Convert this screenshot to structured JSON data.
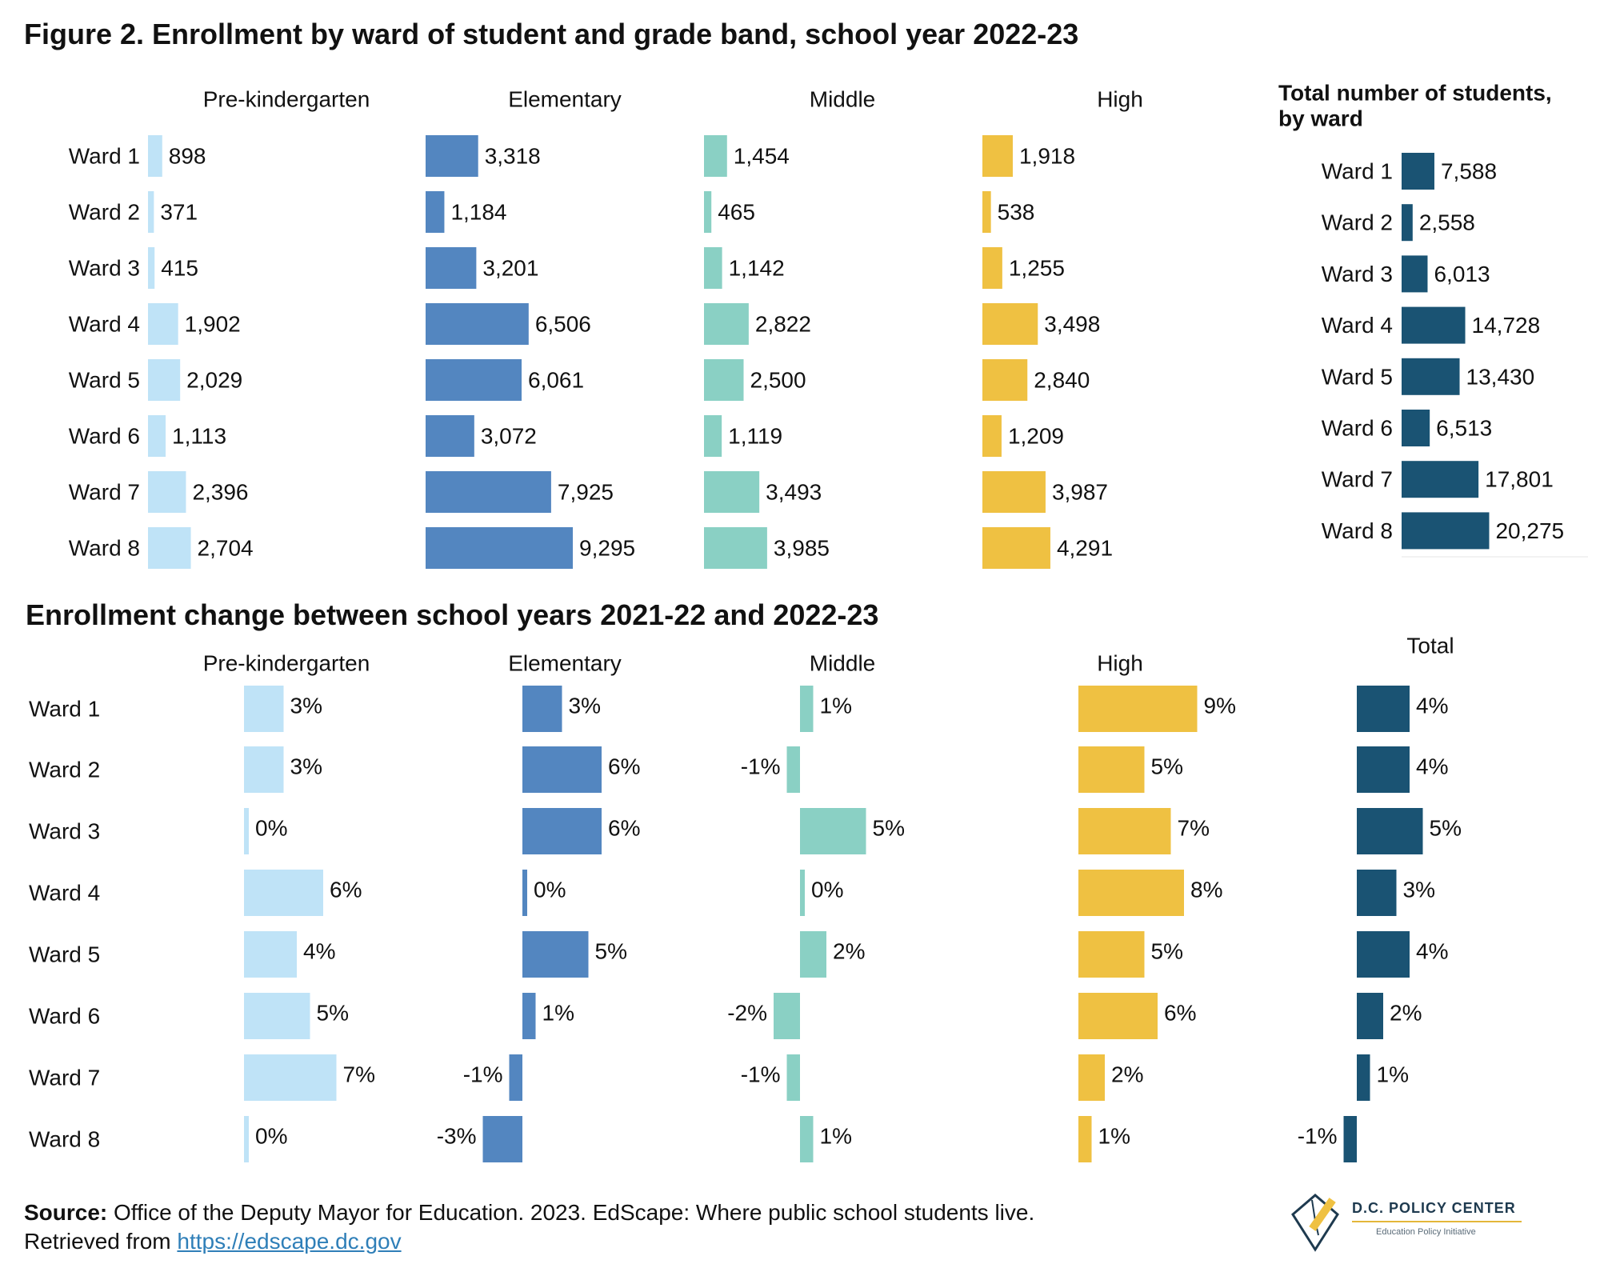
{
  "title": "Figure 2. Enrollment by ward of student and grade band, school year 2022-23",
  "subtitle": "Enrollment change between school years 2021-22 and 2022-23",
  "source": {
    "label": "Source:",
    "text": "Office of the Deputy Mayor for Education. 2023. EdScape: Where public school students live.",
    "retrieved": "Retrieved from",
    "url": "https://edscape.dc.gov"
  },
  "logo": {
    "name": "D.C. POLICY CENTER",
    "sub": "Education Policy Initiative"
  },
  "colors": {
    "prek": "#bfe3f7",
    "elementary": "#5386c0",
    "middle": "#8ad0c4",
    "high": "#efc142",
    "total": "#1a5373"
  },
  "chart_data": [
    {
      "type": "bar",
      "orientation": "horizontal",
      "title": "Enrollment by ward of student and grade band, school year 2022-23",
      "categories": [
        "Ward 1",
        "Ward 2",
        "Ward 3",
        "Ward 4",
        "Ward 5",
        "Ward 6",
        "Ward 7",
        "Ward 8"
      ],
      "series": [
        {
          "name": "Pre-kindergarten",
          "color": "#bfe3f7",
          "values": [
            898,
            371,
            415,
            1902,
            2029,
            1113,
            2396,
            2704
          ],
          "labels": [
            "898",
            "371",
            "415",
            "1,902",
            "2,029",
            "1,113",
            "2,396",
            "2,704"
          ]
        },
        {
          "name": "Elementary",
          "color": "#5386c0",
          "values": [
            3318,
            1184,
            3201,
            6506,
            6061,
            3072,
            7925,
            9295
          ],
          "labels": [
            "3,318",
            "1,184",
            "3,201",
            "6,506",
            "6,061",
            "3,072",
            "7,925",
            "9,295"
          ]
        },
        {
          "name": "Middle",
          "color": "#8ad0c4",
          "values": [
            1454,
            465,
            1142,
            2822,
            2500,
            1119,
            3493,
            3985
          ],
          "labels": [
            "1,454",
            "465",
            "1,142",
            "2,822",
            "2,500",
            "1,119",
            "3,493",
            "3,985"
          ]
        },
        {
          "name": "High",
          "color": "#efc142",
          "values": [
            1918,
            538,
            1255,
            3498,
            2840,
            1209,
            3987,
            4291
          ],
          "labels": [
            "1,918",
            "538",
            "1,255",
            "3,498",
            "2,840",
            "1,209",
            "3,987",
            "4,291"
          ]
        }
      ]
    },
    {
      "type": "bar",
      "orientation": "horizontal",
      "title": "Total number of students, by ward",
      "categories": [
        "Ward 1",
        "Ward 2",
        "Ward 3",
        "Ward 4",
        "Ward 5",
        "Ward 6",
        "Ward 7",
        "Ward 8"
      ],
      "values": [
        7588,
        2558,
        6013,
        14728,
        13430,
        6513,
        17801,
        20275
      ],
      "labels": [
        "7,588",
        "2,558",
        "6,013",
        "14,728",
        "13,430",
        "6,513",
        "17,801",
        "20,275"
      ],
      "color": "#1a5373"
    },
    {
      "type": "bar",
      "orientation": "horizontal",
      "title": "Enrollment change between school years 2021-22 and 2022-23",
      "unit": "%",
      "categories": [
        "Ward 1",
        "Ward 2",
        "Ward 3",
        "Ward 4",
        "Ward 5",
        "Ward 6",
        "Ward 7",
        "Ward 8"
      ],
      "series": [
        {
          "name": "Pre-kindergarten",
          "color": "#bfe3f7",
          "values": [
            3,
            3,
            0,
            6,
            4,
            5,
            7,
            0
          ],
          "labels": [
            "3%",
            "3%",
            "0%",
            "6%",
            "4%",
            "5%",
            "7%",
            "0%"
          ]
        },
        {
          "name": "Elementary",
          "color": "#5386c0",
          "values": [
            3,
            6,
            6,
            0,
            5,
            1,
            -1,
            -3
          ],
          "labels": [
            "3%",
            "6%",
            "6%",
            "0%",
            "5%",
            "1%",
            "-1%",
            "-3%"
          ]
        },
        {
          "name": "Middle",
          "color": "#8ad0c4",
          "values": [
            1,
            -1,
            5,
            0,
            2,
            -2,
            -1,
            1
          ],
          "labels": [
            "1%",
            "-1%",
            "5%",
            "0%",
            "2%",
            "-2%",
            "-1%",
            "1%"
          ]
        },
        {
          "name": "High",
          "color": "#efc142",
          "values": [
            9,
            5,
            7,
            8,
            5,
            6,
            2,
            1
          ],
          "labels": [
            "9%",
            "5%",
            "7%",
            "8%",
            "5%",
            "6%",
            "2%",
            "1%"
          ]
        },
        {
          "name": "Total",
          "color": "#1a5373",
          "values": [
            4,
            4,
            5,
            3,
            4,
            2,
            1,
            -1
          ],
          "labels": [
            "4%",
            "4%",
            "5%",
            "3%",
            "4%",
            "2%",
            "1%",
            "-1%"
          ]
        }
      ]
    }
  ]
}
